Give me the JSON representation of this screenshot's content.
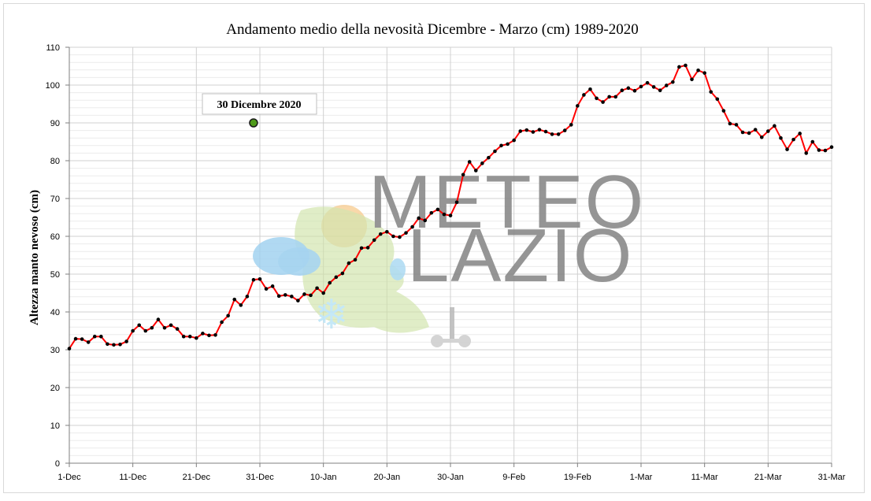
{
  "chart_data": {
    "type": "line",
    "title": "Andamento medio della nevosità Dicembre - Marzo (cm) 1989-2020",
    "xlabel": "",
    "ylabel": "Altezza  manto nevoso (cm)",
    "ylim": [
      0,
      110
    ],
    "yticks": [
      0,
      10,
      20,
      30,
      40,
      50,
      60,
      70,
      80,
      90,
      100,
      110
    ],
    "x_tick_labels": [
      "1-Dec",
      "11-Dec",
      "21-Dec",
      "31-Dec",
      "10-Jan",
      "20-Jan",
      "30-Jan",
      "9-Feb",
      "19-Feb",
      "1-Mar",
      "11-Mar",
      "21-Mar",
      "31-Mar"
    ],
    "grid": true,
    "x_start": "1-Dec",
    "x_end": "31-Mar",
    "series": [
      {
        "color": "#ff0000",
        "marker_color": "#000000",
        "values": [
          30.3,
          32.9,
          32.8,
          32.0,
          33.5,
          33.5,
          31.5,
          31.3,
          31.4,
          32.2,
          35.0,
          36.5,
          35.0,
          35.8,
          38.0,
          35.8,
          36.5,
          35.5,
          33.5,
          33.5,
          33.1,
          34.3,
          33.8,
          33.9,
          37.3,
          39.0,
          43.3,
          41.8,
          44.1,
          48.5,
          48.7,
          46.1,
          46.8,
          44.2,
          44.5,
          44.1,
          43.0,
          44.7,
          44.4,
          46.3,
          45.0,
          47.7,
          49.2,
          50.2,
          52.9,
          53.8,
          56.9,
          57.0,
          59.0,
          60.6,
          61.2,
          60.0,
          59.8,
          60.9,
          62.5,
          64.8,
          64.2,
          66.2,
          67.1,
          65.8,
          65.5,
          69.0,
          76.3,
          79.7,
          77.4,
          79.3,
          80.8,
          82.5,
          84.0,
          84.4,
          85.4,
          87.8,
          88.1,
          87.6,
          88.2,
          87.7,
          87.0,
          87.0,
          88.0,
          89.5,
          94.5,
          97.4,
          98.9,
          96.5,
          95.5,
          96.9,
          96.9,
          98.6,
          99.2,
          98.5,
          99.6,
          100.6,
          99.5,
          98.6,
          99.9,
          100.8,
          104.8,
          105.2,
          101.5,
          103.9,
          103.2,
          98.2,
          96.3,
          93.2,
          89.8,
          89.5,
          87.5,
          87.3,
          88.2,
          86.2,
          87.8,
          89.2,
          86.0,
          83.0,
          85.6,
          87.2,
          82.0,
          85.0,
          82.8,
          82.7,
          83.6
        ]
      }
    ],
    "annotation": {
      "label": "30 Dicembre 2020",
      "x_day_label": "30-Dec",
      "y": 90,
      "marker_color": "#4e9a1a"
    },
    "watermark": {
      "line1": "METEO",
      "line2": "LAZIO"
    }
  }
}
